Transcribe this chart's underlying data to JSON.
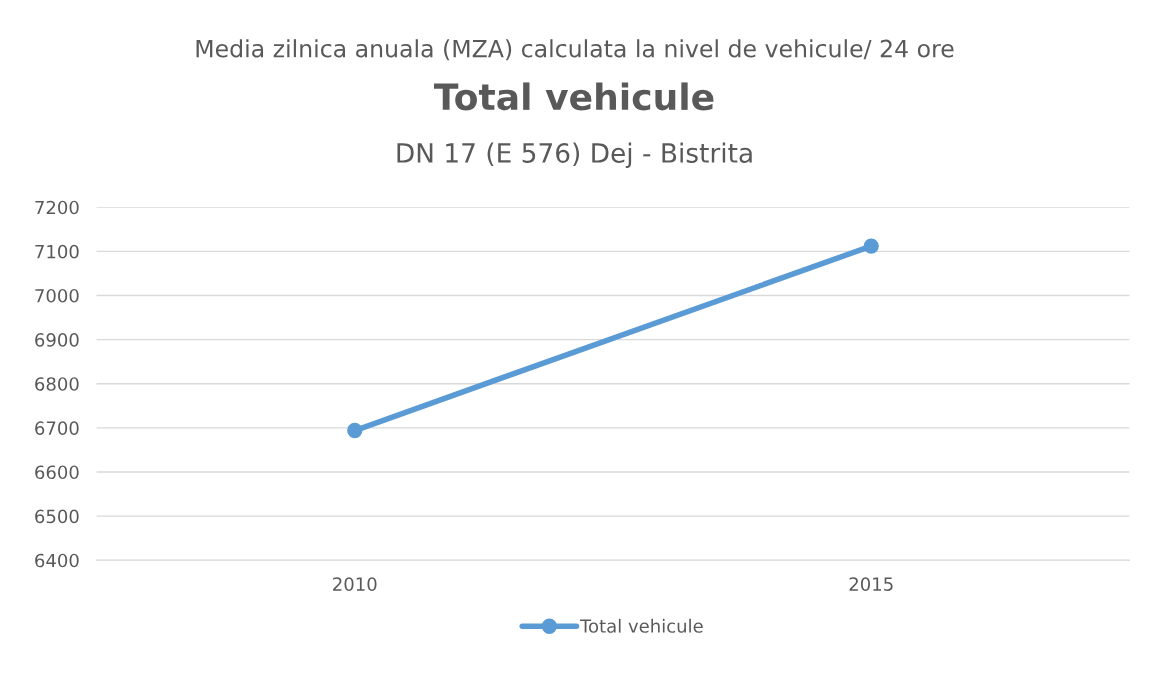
{
  "chart_data": {
    "type": "line",
    "title": "Total vehicule",
    "subtitle": "DN 17 (E 576) Dej - Bistrita",
    "annotations": [
      "Media zilnica anuala (MZA) calculata la nivel de vehicule/ 24 ore"
    ],
    "categories": [
      "2010",
      "2015"
    ],
    "series": [
      {
        "name": "Total vehicule",
        "color": "#5b9bd5",
        "values": [
          6694,
          7112
        ]
      }
    ],
    "ylim": [
      6400,
      7200
    ],
    "yticks": [
      6400,
      6500,
      6600,
      6700,
      6800,
      6900,
      7000,
      7100,
      7200
    ],
    "grid": "y",
    "legend": "bottom",
    "marker": "circle",
    "line_style": "solid"
  }
}
